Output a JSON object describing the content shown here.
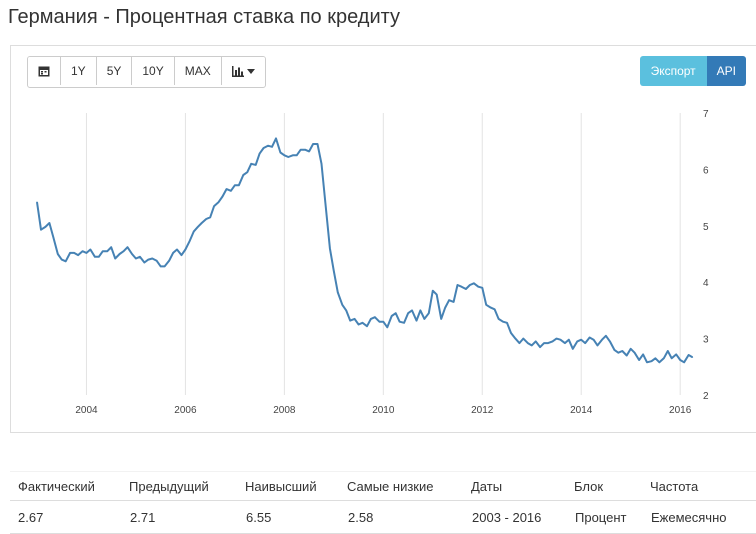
{
  "page": {
    "title": "Германия - Процентная ставка по кредиту"
  },
  "toolbar": {
    "calendar_icon": "calendar-icon",
    "ranges": [
      "1Y",
      "5Y",
      "10Y",
      "MAX"
    ],
    "chart_type_icon": "bar-chart-icon",
    "export_label": "Экспорт",
    "api_label": "API"
  },
  "colors": {
    "line": "#4682b4",
    "export": "#5bc0de",
    "api": "#337ab7"
  },
  "chart_data": {
    "type": "line",
    "title": "",
    "xlabel": "",
    "ylabel": "",
    "ylim": [
      2,
      7
    ],
    "xlim": [
      2003.0,
      2016.3
    ],
    "x_ticks": [
      "2004",
      "2006",
      "2008",
      "2010",
      "2012",
      "2014",
      "2016"
    ],
    "y_ticks": [
      "2",
      "3",
      "4",
      "5",
      "6",
      "7"
    ],
    "grid": "vertical",
    "y_axis_side": "right",
    "series": [
      {
        "points": [
          [
            2003.0,
            5.42
          ],
          [
            2003.08,
            4.93
          ],
          [
            2003.17,
            4.98
          ],
          [
            2003.25,
            5.05
          ],
          [
            2003.33,
            4.8
          ],
          [
            2003.42,
            4.5
          ],
          [
            2003.5,
            4.4
          ],
          [
            2003.58,
            4.37
          ],
          [
            2003.67,
            4.52
          ],
          [
            2003.75,
            4.52
          ],
          [
            2003.83,
            4.48
          ],
          [
            2003.92,
            4.55
          ],
          [
            2004.0,
            4.52
          ],
          [
            2004.08,
            4.58
          ],
          [
            2004.17,
            4.45
          ],
          [
            2004.25,
            4.45
          ],
          [
            2004.33,
            4.55
          ],
          [
            2004.42,
            4.55
          ],
          [
            2004.5,
            4.62
          ],
          [
            2004.58,
            4.42
          ],
          [
            2004.67,
            4.5
          ],
          [
            2004.75,
            4.55
          ],
          [
            2004.83,
            4.62
          ],
          [
            2004.92,
            4.5
          ],
          [
            2005.0,
            4.42
          ],
          [
            2005.08,
            4.45
          ],
          [
            2005.17,
            4.35
          ],
          [
            2005.25,
            4.4
          ],
          [
            2005.33,
            4.42
          ],
          [
            2005.42,
            4.38
          ],
          [
            2005.5,
            4.28
          ],
          [
            2005.58,
            4.28
          ],
          [
            2005.67,
            4.38
          ],
          [
            2005.75,
            4.52
          ],
          [
            2005.83,
            4.58
          ],
          [
            2005.92,
            4.48
          ],
          [
            2006.0,
            4.58
          ],
          [
            2006.08,
            4.72
          ],
          [
            2006.17,
            4.9
          ],
          [
            2006.25,
            4.98
          ],
          [
            2006.33,
            5.05
          ],
          [
            2006.42,
            5.12
          ],
          [
            2006.5,
            5.15
          ],
          [
            2006.58,
            5.35
          ],
          [
            2006.67,
            5.42
          ],
          [
            2006.75,
            5.52
          ],
          [
            2006.83,
            5.65
          ],
          [
            2006.92,
            5.62
          ],
          [
            2007.0,
            5.72
          ],
          [
            2007.08,
            5.72
          ],
          [
            2007.17,
            5.9
          ],
          [
            2007.25,
            5.95
          ],
          [
            2007.33,
            6.1
          ],
          [
            2007.42,
            6.08
          ],
          [
            2007.5,
            6.28
          ],
          [
            2007.58,
            6.38
          ],
          [
            2007.67,
            6.42
          ],
          [
            2007.75,
            6.4
          ],
          [
            2007.83,
            6.55
          ],
          [
            2007.92,
            6.3
          ],
          [
            2008.0,
            6.25
          ],
          [
            2008.08,
            6.22
          ],
          [
            2008.17,
            6.25
          ],
          [
            2008.25,
            6.25
          ],
          [
            2008.33,
            6.35
          ],
          [
            2008.42,
            6.35
          ],
          [
            2008.5,
            6.32
          ],
          [
            2008.58,
            6.45
          ],
          [
            2008.67,
            6.45
          ],
          [
            2008.75,
            6.1
          ],
          [
            2008.83,
            5.4
          ],
          [
            2008.92,
            4.6
          ],
          [
            2009.0,
            4.2
          ],
          [
            2009.08,
            3.82
          ],
          [
            2009.17,
            3.6
          ],
          [
            2009.25,
            3.5
          ],
          [
            2009.33,
            3.32
          ],
          [
            2009.42,
            3.35
          ],
          [
            2009.5,
            3.25
          ],
          [
            2009.58,
            3.28
          ],
          [
            2009.67,
            3.22
          ],
          [
            2009.75,
            3.35
          ],
          [
            2009.83,
            3.38
          ],
          [
            2009.92,
            3.3
          ],
          [
            2010.0,
            3.3
          ],
          [
            2010.08,
            3.2
          ],
          [
            2010.17,
            3.4
          ],
          [
            2010.25,
            3.45
          ],
          [
            2010.33,
            3.3
          ],
          [
            2010.42,
            3.28
          ],
          [
            2010.5,
            3.45
          ],
          [
            2010.58,
            3.5
          ],
          [
            2010.67,
            3.32
          ],
          [
            2010.75,
            3.5
          ],
          [
            2010.83,
            3.35
          ],
          [
            2010.92,
            3.45
          ],
          [
            2011.0,
            3.85
          ],
          [
            2011.08,
            3.78
          ],
          [
            2011.17,
            3.35
          ],
          [
            2011.25,
            3.55
          ],
          [
            2011.33,
            3.68
          ],
          [
            2011.42,
            3.65
          ],
          [
            2011.5,
            3.95
          ],
          [
            2011.58,
            3.92
          ],
          [
            2011.67,
            3.88
          ],
          [
            2011.75,
            3.95
          ],
          [
            2011.83,
            3.98
          ],
          [
            2011.92,
            3.92
          ],
          [
            2012.0,
            3.9
          ],
          [
            2012.08,
            3.6
          ],
          [
            2012.17,
            3.55
          ],
          [
            2012.25,
            3.52
          ],
          [
            2012.33,
            3.35
          ],
          [
            2012.42,
            3.3
          ],
          [
            2012.5,
            3.28
          ],
          [
            2012.58,
            3.1
          ],
          [
            2012.67,
            3.0
          ],
          [
            2012.75,
            2.92
          ],
          [
            2012.83,
            3.0
          ],
          [
            2012.92,
            2.92
          ],
          [
            2013.0,
            2.88
          ],
          [
            2013.08,
            2.95
          ],
          [
            2013.17,
            2.85
          ],
          [
            2013.25,
            2.92
          ],
          [
            2013.33,
            2.92
          ],
          [
            2013.42,
            2.95
          ],
          [
            2013.5,
            3.0
          ],
          [
            2013.58,
            2.98
          ],
          [
            2013.67,
            2.92
          ],
          [
            2013.75,
            2.98
          ],
          [
            2013.83,
            2.82
          ],
          [
            2013.92,
            2.95
          ],
          [
            2014.0,
            2.98
          ],
          [
            2014.08,
            2.92
          ],
          [
            2014.17,
            3.02
          ],
          [
            2014.25,
            2.98
          ],
          [
            2014.33,
            2.88
          ],
          [
            2014.42,
            2.98
          ],
          [
            2014.5,
            3.05
          ],
          [
            2014.58,
            2.95
          ],
          [
            2014.67,
            2.8
          ],
          [
            2014.75,
            2.75
          ],
          [
            2014.83,
            2.78
          ],
          [
            2014.92,
            2.7
          ],
          [
            2015.0,
            2.82
          ],
          [
            2015.08,
            2.75
          ],
          [
            2015.17,
            2.62
          ],
          [
            2015.25,
            2.72
          ],
          [
            2015.33,
            2.58
          ],
          [
            2015.42,
            2.6
          ],
          [
            2015.5,
            2.65
          ],
          [
            2015.58,
            2.58
          ],
          [
            2015.67,
            2.65
          ],
          [
            2015.75,
            2.78
          ],
          [
            2015.83,
            2.65
          ],
          [
            2015.92,
            2.72
          ],
          [
            2016.0,
            2.62
          ],
          [
            2016.08,
            2.58
          ],
          [
            2016.17,
            2.71
          ],
          [
            2016.25,
            2.67
          ]
        ]
      }
    ]
  },
  "stats": {
    "headers": [
      "Фактический",
      "Предыдущий",
      "Наивысший",
      "Самые низкие",
      "Даты",
      "Блок",
      "Частота"
    ],
    "values": [
      "2.67",
      "2.71",
      "6.55",
      "2.58",
      "2003 - 2016",
      "Процент",
      "Ежемесячно"
    ]
  }
}
